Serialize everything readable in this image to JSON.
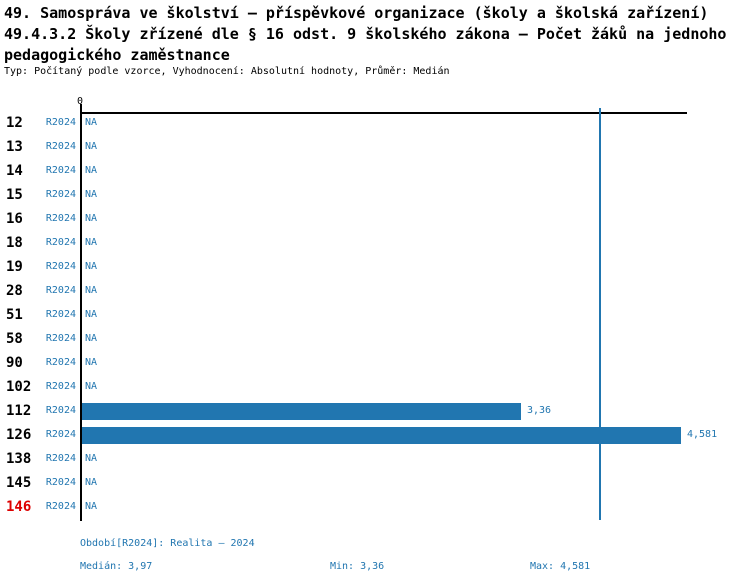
{
  "title": {
    "line1": "49. Samospráva ve školství – příspěvkové organizace (školy a školská zařízení)",
    "line2": "49.4.3.2 Školy zřízené dle § 16 odst. 9 školského zákona – Počet žáků na jednoho",
    "line3": "pedagogického zaměstnance",
    "subtitle": "Typ: Počítaný podle vzorce, Vyhodnocení: Absolutní hodnoty, Průměr: Medián"
  },
  "chart_data": {
    "type": "bar",
    "orientation": "horizontal",
    "title": "Počet žáků na jednoho pedagogického zaměstnance",
    "x_axis_tick_label": "0",
    "xlim": [
      0,
      4.64
    ],
    "series_label": "R2024",
    "median_value": 3.97,
    "rows": [
      {
        "category": "12",
        "period": "R2024",
        "value": null,
        "value_label": "NA"
      },
      {
        "category": "13",
        "period": "R2024",
        "value": null,
        "value_label": "NA"
      },
      {
        "category": "14",
        "period": "R2024",
        "value": null,
        "value_label": "NA"
      },
      {
        "category": "15",
        "period": "R2024",
        "value": null,
        "value_label": "NA"
      },
      {
        "category": "16",
        "period": "R2024",
        "value": null,
        "value_label": "NA"
      },
      {
        "category": "18",
        "period": "R2024",
        "value": null,
        "value_label": "NA"
      },
      {
        "category": "19",
        "period": "R2024",
        "value": null,
        "value_label": "NA"
      },
      {
        "category": "28",
        "period": "R2024",
        "value": null,
        "value_label": "NA"
      },
      {
        "category": "51",
        "period": "R2024",
        "value": null,
        "value_label": "NA"
      },
      {
        "category": "58",
        "period": "R2024",
        "value": null,
        "value_label": "NA"
      },
      {
        "category": "90",
        "period": "R2024",
        "value": null,
        "value_label": "NA"
      },
      {
        "category": "102",
        "period": "R2024",
        "value": null,
        "value_label": "NA"
      },
      {
        "category": "112",
        "period": "R2024",
        "value": 3.36,
        "value_label": "3,36"
      },
      {
        "category": "126",
        "period": "R2024",
        "value": 4.581,
        "value_label": "4,581"
      },
      {
        "category": "138",
        "period": "R2024",
        "value": null,
        "value_label": "NA"
      },
      {
        "category": "145",
        "period": "R2024",
        "value": null,
        "value_label": "NA"
      },
      {
        "category": "146",
        "period": "R2024",
        "value": null,
        "value_label": "NA",
        "highlight": true
      }
    ],
    "colors": {
      "bar": "#2176b0",
      "blue_text": "#2176b0",
      "median_line": "#2176b0",
      "highlight_text": "#dd0000",
      "axis": "#000000"
    }
  },
  "footer": {
    "period": "Období[R2024]: Realita – 2024",
    "median": "Medián: 3,97",
    "min": "Min: 3,36",
    "max": "Max: 4,581"
  }
}
